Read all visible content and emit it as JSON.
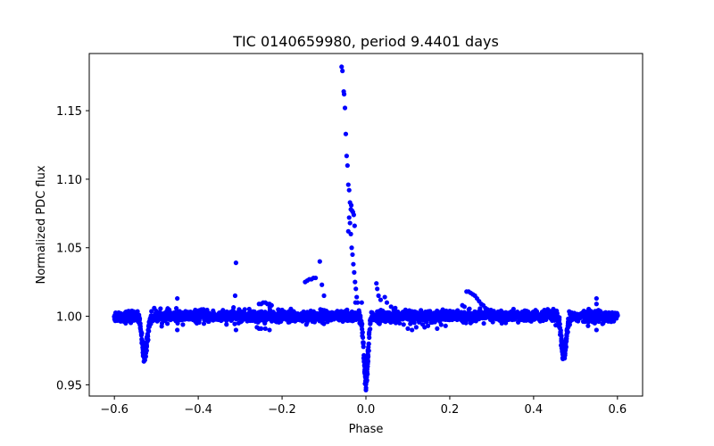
{
  "chart_data": {
    "type": "scatter",
    "title": "TIC 0140659980, period 9.4401 days",
    "xlabel": "Phase",
    "ylabel": "Normalized PDC flux",
    "xlim": [
      -0.66,
      0.66
    ],
    "ylim": [
      0.9418,
      1.1917
    ],
    "xticks": [
      -0.6,
      -0.4,
      -0.2,
      0.0,
      0.2,
      0.4,
      0.6
    ],
    "xtick_labels": [
      "−0.6",
      "−0.4",
      "−0.2",
      "0.0",
      "0.2",
      "0.4",
      "0.6"
    ],
    "yticks": [
      0.95,
      1.0,
      1.05,
      1.1,
      1.15
    ],
    "ytick_labels": [
      "0.95",
      "1.00",
      "1.05",
      "1.10",
      "1.15"
    ],
    "grid": false,
    "series": [
      {
        "color": "#0000ff",
        "baseline": {
          "x_range": [
            -0.6,
            0.6
          ],
          "y_center": 1.0,
          "y_scatter": 0.0035,
          "dips": [
            {
              "x": -0.528,
              "depth": 0.03,
              "width": 0.006
            },
            {
              "x": 0.0,
              "depth": 0.05,
              "width": 0.005
            },
            {
              "x": 0.472,
              "depth": 0.03,
              "width": 0.006
            }
          ]
        },
        "points": [
          {
            "x": -0.058,
            "y": 1.182
          },
          {
            "x": -0.056,
            "y": 1.179
          },
          {
            "x": -0.053,
            "y": 1.164
          },
          {
            "x": -0.052,
            "y": 1.162
          },
          {
            "x": -0.05,
            "y": 1.152
          },
          {
            "x": -0.048,
            "y": 1.133
          },
          {
            "x": -0.046,
            "y": 1.117
          },
          {
            "x": -0.044,
            "y": 1.11
          },
          {
            "x": -0.042,
            "y": 1.096
          },
          {
            "x": -0.04,
            "y": 1.092
          },
          {
            "x": -0.038,
            "y": 1.083
          },
          {
            "x": -0.036,
            "y": 1.078
          },
          {
            "x": -0.035,
            "y": 1.081
          },
          {
            "x": -0.033,
            "y": 1.077
          },
          {
            "x": -0.031,
            "y": 1.076
          },
          {
            "x": -0.029,
            "y": 1.074
          },
          {
            "x": -0.027,
            "y": 1.066
          },
          {
            "x": -0.04,
            "y": 1.072
          },
          {
            "x": -0.038,
            "y": 1.068
          },
          {
            "x": -0.042,
            "y": 1.062
          },
          {
            "x": -0.036,
            "y": 1.06
          },
          {
            "x": -0.034,
            "y": 1.05
          },
          {
            "x": -0.032,
            "y": 1.045
          },
          {
            "x": -0.03,
            "y": 1.038
          },
          {
            "x": -0.028,
            "y": 1.032
          },
          {
            "x": -0.026,
            "y": 1.025
          },
          {
            "x": -0.024,
            "y": 1.02
          },
          {
            "x": -0.022,
            "y": 1.014
          },
          {
            "x": -0.02,
            "y": 1.01
          },
          {
            "x": -0.31,
            "y": 1.039
          },
          {
            "x": -0.312,
            "y": 1.015
          },
          {
            "x": -0.31,
            "y": 0.99
          },
          {
            "x": -0.45,
            "y": 1.013
          },
          {
            "x": -0.45,
            "y": 0.99
          },
          {
            "x": -0.11,
            "y": 1.04
          },
          {
            "x": -0.1,
            "y": 1.015
          },
          {
            "x": -0.105,
            "y": 1.023
          },
          {
            "x": -0.145,
            "y": 1.025
          },
          {
            "x": -0.14,
            "y": 1.026
          },
          {
            "x": -0.135,
            "y": 1.027
          },
          {
            "x": -0.13,
            "y": 1.027
          },
          {
            "x": -0.125,
            "y": 1.028
          },
          {
            "x": -0.12,
            "y": 1.028
          },
          {
            "x": -0.255,
            "y": 1.009
          },
          {
            "x": -0.25,
            "y": 1.009
          },
          {
            "x": -0.245,
            "y": 1.01
          },
          {
            "x": -0.24,
            "y": 1.01
          },
          {
            "x": -0.235,
            "y": 1.009
          },
          {
            "x": -0.23,
            "y": 1.009
          },
          {
            "x": -0.225,
            "y": 1.008
          },
          {
            "x": -0.26,
            "y": 0.992
          },
          {
            "x": -0.255,
            "y": 0.991
          },
          {
            "x": -0.25,
            "y": 0.991
          },
          {
            "x": -0.24,
            "y": 0.991
          },
          {
            "x": -0.23,
            "y": 0.99
          },
          {
            "x": -0.025,
            "y": 1.01
          },
          {
            "x": -0.01,
            "y": 1.01
          },
          {
            "x": 0.025,
            "y": 1.024
          },
          {
            "x": 0.027,
            "y": 1.02
          },
          {
            "x": 0.03,
            "y": 1.015
          },
          {
            "x": 0.035,
            "y": 1.012
          },
          {
            "x": 0.045,
            "y": 1.014
          },
          {
            "x": 0.05,
            "y": 1.01
          },
          {
            "x": 0.06,
            "y": 1.007
          },
          {
            "x": 0.07,
            "y": 1.006
          },
          {
            "x": 0.09,
            "y": 0.994
          },
          {
            "x": 0.1,
            "y": 0.991
          },
          {
            "x": 0.11,
            "y": 0.99
          },
          {
            "x": 0.12,
            "y": 0.992
          },
          {
            "x": 0.14,
            "y": 0.992
          },
          {
            "x": 0.17,
            "y": 0.991
          },
          {
            "x": 0.19,
            "y": 0.993
          },
          {
            "x": 0.24,
            "y": 1.018
          },
          {
            "x": 0.245,
            "y": 1.018
          },
          {
            "x": 0.25,
            "y": 1.017
          },
          {
            "x": 0.255,
            "y": 1.016
          },
          {
            "x": 0.26,
            "y": 1.015
          },
          {
            "x": 0.265,
            "y": 1.013
          },
          {
            "x": 0.27,
            "y": 1.011
          },
          {
            "x": 0.275,
            "y": 1.009
          },
          {
            "x": 0.28,
            "y": 1.008
          },
          {
            "x": 0.285,
            "y": 1.006
          },
          {
            "x": 0.29,
            "y": 1.005
          },
          {
            "x": 0.295,
            "y": 1.004
          },
          {
            "x": 0.23,
            "y": 1.008
          },
          {
            "x": 0.235,
            "y": 1.007
          },
          {
            "x": 0.55,
            "y": 1.013
          },
          {
            "x": 0.55,
            "y": 1.009
          },
          {
            "x": 0.55,
            "y": 0.99
          }
        ]
      }
    ]
  }
}
